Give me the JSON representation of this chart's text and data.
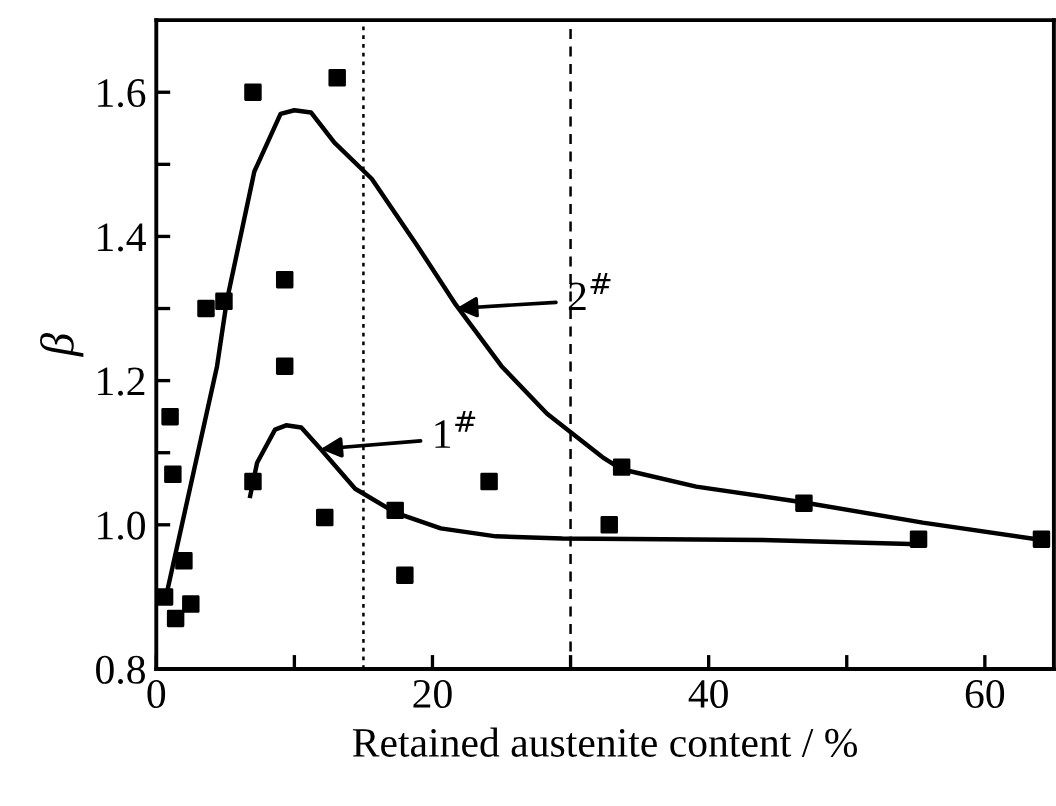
{
  "chart_data": {
    "type": "scatter",
    "xlabel": "Retained austenite content / %",
    "ylabel": "β",
    "xlim": [
      0,
      65
    ],
    "ylim": [
      0.8,
      1.7
    ],
    "xticks": [
      0,
      {
        "value": 10,
        "label": null
      },
      20,
      {
        "value": 30,
        "label": null
      },
      40,
      {
        "value": 50,
        "label": null
      },
      60
    ],
    "yticks": [
      0.8,
      {
        "value": 0.9,
        "label": null
      },
      {
        "value": 1.0,
        "label": "1.0"
      },
      {
        "value": 1.1,
        "label": null
      },
      1.2,
      {
        "value": 1.3,
        "label": null
      },
      1.4,
      {
        "value": 1.5,
        "label": null
      },
      1.6
    ],
    "grid": false,
    "series": [
      {
        "marker": "square",
        "color": "#000000",
        "x": [
          0.6,
          1.0,
          1.2,
          1.4,
          2.0,
          2.5,
          3.6,
          4.9,
          7.0,
          9.3,
          9.3,
          13.1,
          7.0,
          12.2,
          17.3,
          18.0,
          24.1,
          33.7,
          32.8,
          46.9,
          55.2,
          64.1
        ],
        "values": [
          0.9,
          1.15,
          1.07,
          0.87,
          0.95,
          0.89,
          1.3,
          1.31,
          1.6,
          1.34,
          1.22,
          1.62,
          1.06,
          1.01,
          1.02,
          0.93,
          1.06,
          1.08,
          1.0,
          1.03,
          0.98,
          0.98
        ]
      },
      {
        "type": "line",
        "color": "#000000",
        "line_style": "solid",
        "x": [
          0.7,
          4.4,
          5.1,
          7.1,
          9.0,
          10.0,
          11.2,
          12.9,
          15.6,
          18.8,
          21.7,
          25.0,
          28.3,
          32.3,
          33.7,
          39.1,
          46.9,
          55.5,
          64.1
        ],
        "values": [
          0.9,
          1.22,
          1.31,
          1.49,
          1.57,
          1.575,
          1.572,
          1.53,
          1.48,
          1.39,
          1.305,
          1.22,
          1.154,
          1.094,
          1.077,
          1.053,
          1.031,
          1.003,
          0.979
        ]
      },
      {
        "type": "line",
        "color": "#000000",
        "line_style": "solid",
        "x": [
          6.8,
          7.3,
          8.6,
          9.4,
          10.5,
          11.9,
          14.4,
          17.3,
          20.6,
          24.6,
          29.4,
          43.9,
          55.1
        ],
        "values": [
          1.04,
          1.086,
          1.132,
          1.138,
          1.135,
          1.105,
          1.05,
          1.017,
          0.995,
          0.984,
          0.981,
          0.979,
          0.973
        ]
      }
    ],
    "ref_lines": [
      {
        "axis": "x",
        "value": 15,
        "color": "#000000",
        "line_style": "dotted"
      },
      {
        "axis": "x",
        "value": 30,
        "color": "#000000",
        "line_style": "dashed"
      }
    ],
    "annotations": [
      {
        "text": "2$^{#}$",
        "x": 21.7,
        "y": 1.3
      },
      {
        "text": "1$^{#}$",
        "x": 11.9,
        "y": 1.105
      }
    ]
  }
}
